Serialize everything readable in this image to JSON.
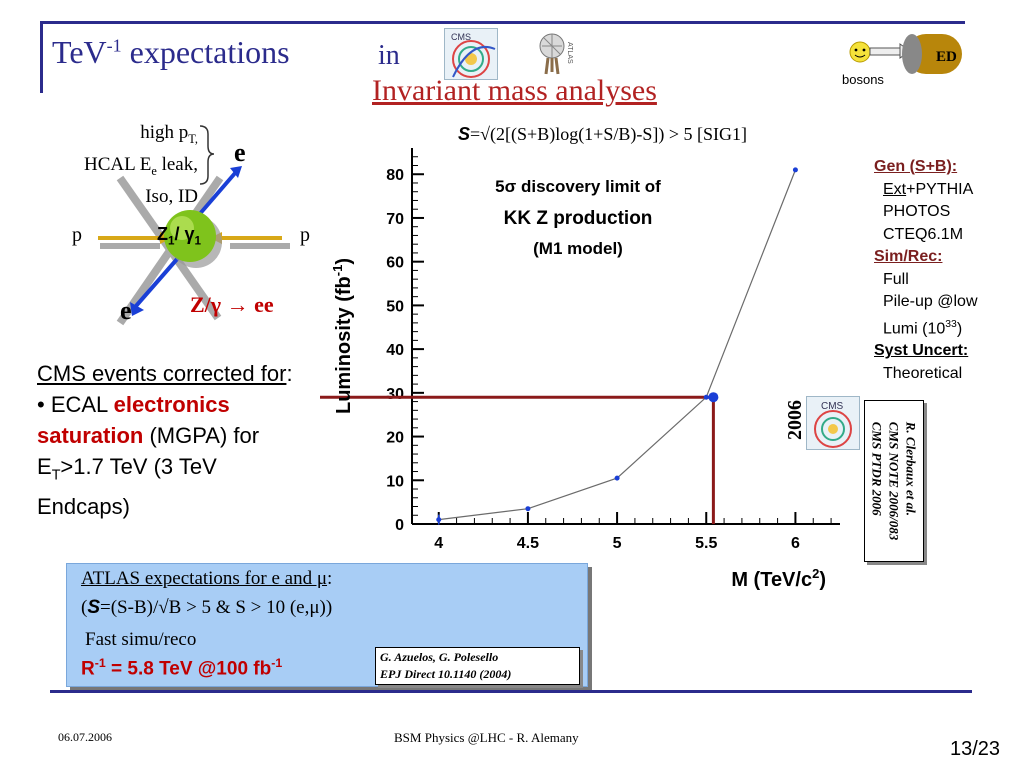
{
  "title": {
    "prefix": "TeV",
    "sup": "-1",
    "suffix": " expectations",
    "in": "in",
    "subtitle": "Invariant mass analyses"
  },
  "logos": {
    "cms": "CMS",
    "atlas": "ATLAS"
  },
  "bosons": {
    "badge": "ED",
    "label": "bosons"
  },
  "feynman": {
    "cuts_line1": "high p",
    "cuts_line1_sub": "T,",
    "cuts_line2_a": "HCAL E",
    "cuts_line2_sub": "e",
    "cuts_line2_b": " leak,",
    "cuts_line3": "Iso, ID",
    "e_top": "e",
    "e_bottom": "e",
    "p_left": "p",
    "p_right": "p",
    "boson_Z": "Z",
    "boson_sub1": "1",
    "boson_slash": "/ γ",
    "boson_sub2": "1",
    "process": "Z/γ → ee"
  },
  "cms_events": {
    "heading": "CMS events corrected for",
    "colon": ":",
    "bullet": "•",
    "ecal": " ECAL ",
    "red_text_1": "electronics",
    "red_text_2": "saturation",
    "mgpa": " (MGPA) for",
    "et": "E",
    "et_sub": "T",
    "et_rest": ">1.7 TeV (3 TeV",
    "endcaps": "Endcaps)"
  },
  "formula": {
    "sym": "S",
    "text": "=√(2[(S+B)log(1+S/B)-S]) > 5 [SIG1]"
  },
  "chart_data": {
    "type": "line",
    "title_line1_prefix": "5σ",
    "title_line1_rest": " discovery limit of",
    "title_line2": "KK Z production",
    "title_line3": "(M1 model)",
    "xlabel": "M (TeV/c",
    "xlabel_sup": "2",
    "xlabel_end": ")",
    "ylabel": "Luminosity (fb",
    "ylabel_sup": "-1",
    "ylabel_end": ")",
    "xlim": [
      3.85,
      6.25
    ],
    "ylim": [
      0,
      86
    ],
    "xticks": [
      4,
      4.5,
      5,
      5.5,
      6
    ],
    "xtick_labels": [
      "4",
      "4.5",
      "5",
      "5.5",
      "6"
    ],
    "yticks": [
      0,
      10,
      20,
      30,
      40,
      50,
      60,
      70,
      80
    ],
    "ytick_labels": [
      "0",
      "10",
      "20",
      "30",
      "40",
      "50",
      "60",
      "70",
      "80"
    ],
    "x": [
      4.0,
      4.5,
      5.0,
      5.5,
      6.0
    ],
    "y": [
      1.0,
      3.5,
      10.5,
      29.0,
      81.0
    ],
    "highlight": {
      "x": 5.54,
      "y": 29.0
    },
    "line_color": "#6b6b6b",
    "point_color": "#1a3fd6",
    "highlight_color": "#8b1a1a"
  },
  "sidebar": {
    "gen_label": "Gen (",
    "gen_s": "S",
    "gen_rest": "+B):",
    "ext": "Ext",
    "pythia": "+PYTHIA",
    "photos": "PHOTOS",
    "cteq": "CTEQ6.1M",
    "simrec": "Sim/Rec:",
    "full": "Full",
    "pileup": "Pile-up @low",
    "lumi": "Lumi (10",
    "lumi_sup": "33",
    "lumi_end": ")",
    "syst": "Syst Uncert:",
    "theoretical": "Theoretical"
  },
  "cms_note": {
    "year": "2006",
    "line1": "R. Clerbaux et al.",
    "line2": "CMS NOTE 2006/083",
    "line3": "CMS PTDR 2006"
  },
  "atlas": {
    "heading": "ATLAS expectations for e and μ",
    "colon": ":",
    "formula_open": "(",
    "formula_sym": "S",
    "formula_rest": "=(S-B)/√B > 5 & S > 10 (e,μ))",
    "simu": "Fast simu/reco",
    "result_R": "R",
    "result_sup1": "-1",
    "result_mid": " = 5.8 TeV @100 fb",
    "result_sup2": "-1",
    "ref_line1": "G. Azuelos, G. Polesello",
    "ref_line2": "EPJ Direct 10.1140 (2004)"
  },
  "footer": {
    "date": "06.07.2006",
    "center": "BSM Physics @LHC -  R. Alemany",
    "page": "13/23"
  },
  "colors": {
    "accent": "#2b2b8c",
    "red": "#c00000",
    "maroon": "#8b1a1a",
    "box_blue": "#a8cdf5"
  }
}
